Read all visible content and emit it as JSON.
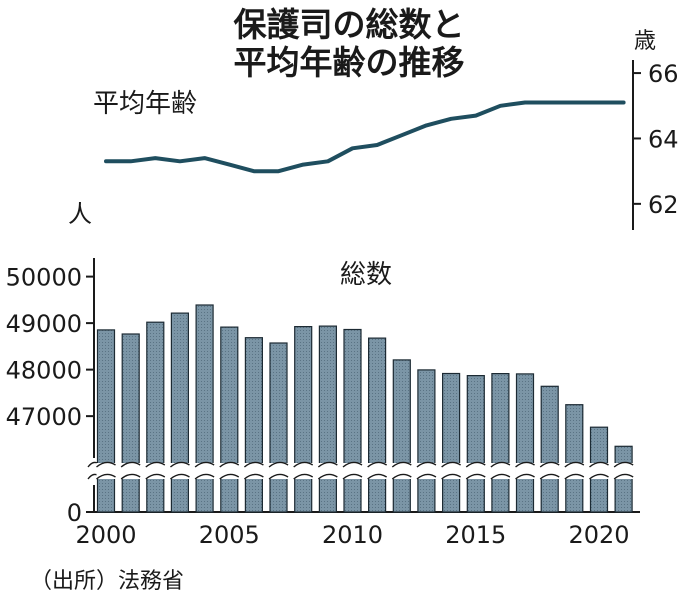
{
  "title_lines": [
    "保護司の総数と",
    "平均年齢の推移"
  ],
  "source": "（出所）法務省",
  "colors": {
    "line": "#1f4e5f",
    "bar_fill": "#7b95a6",
    "bar_stroke": "#1c2a33",
    "text": "#1a1a1a",
    "axis": "#1a1a1a"
  },
  "chart_data": [
    {
      "type": "line",
      "label": "平均年齢",
      "y_unit": "歳",
      "x": [
        2000,
        2001,
        2002,
        2003,
        2004,
        2005,
        2006,
        2007,
        2008,
        2009,
        2010,
        2011,
        2012,
        2013,
        2014,
        2015,
        2016,
        2017,
        2018,
        2019,
        2020,
        2021
      ],
      "values": [
        63.3,
        63.3,
        63.4,
        63.3,
        63.4,
        63.2,
        63.0,
        63.0,
        63.2,
        63.3,
        63.7,
        63.8,
        64.1,
        64.4,
        64.6,
        64.7,
        65.0,
        65.1,
        65.1,
        65.1,
        65.1,
        65.1
      ],
      "yticks": [
        62,
        64,
        66
      ],
      "ylim": [
        61.2,
        66.4
      ],
      "y_axis_position": "right",
      "grid": false
    },
    {
      "type": "bar",
      "label": "総数",
      "y_unit": "人",
      "x": [
        2000,
        2001,
        2002,
        2003,
        2004,
        2005,
        2006,
        2007,
        2008,
        2009,
        2010,
        2011,
        2012,
        2013,
        2014,
        2015,
        2016,
        2017,
        2018,
        2019,
        2020,
        2021
      ],
      "values": [
        48854,
        48767,
        49020,
        49215,
        49389,
        48914,
        48686,
        48572,
        48925,
        48936,
        48863,
        48677,
        48210,
        47994,
        47916,
        47872,
        47914,
        47909,
        47641,
        47245,
        46763,
        46352
      ],
      "yticks": [
        0,
        47000,
        48000,
        49000,
        50000
      ],
      "ylim_above_break": [
        46100,
        50400
      ],
      "axis_break": true,
      "xticks": [
        2000,
        2005,
        2010,
        2015,
        2020
      ],
      "grid": false
    }
  ]
}
